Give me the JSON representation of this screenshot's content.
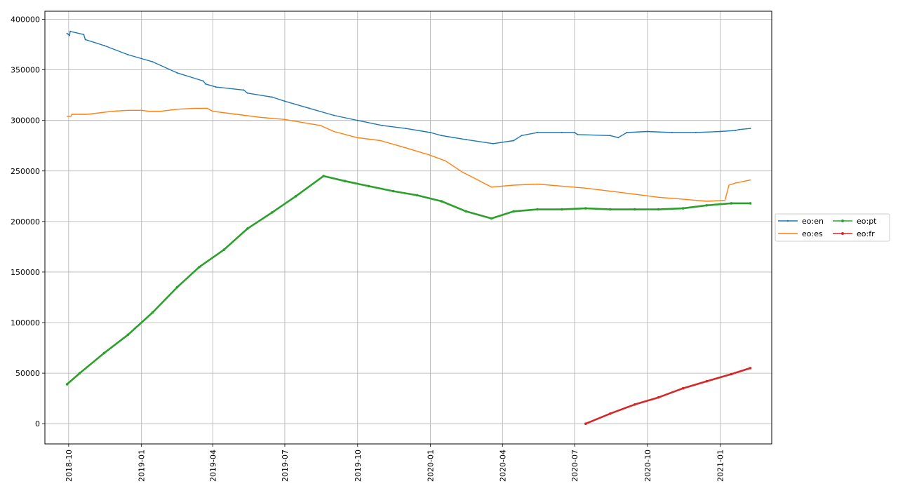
{
  "chart_data": {
    "type": "line",
    "title": "",
    "xlabel": "",
    "ylabel": "",
    "x_type": "date",
    "xlim": [
      "2018-09-01",
      "2021-03-07"
    ],
    "ylim": [
      -20000,
      408000
    ],
    "grid": true,
    "legend_placement": "outside-right",
    "legend_columns": 2,
    "x_ticks": [
      "2018-10",
      "2019-01",
      "2019-04",
      "2019-07",
      "2019-10",
      "2020-01",
      "2020-04",
      "2020-07",
      "2020-10",
      "2021-01"
    ],
    "y_ticks": [
      0,
      50000,
      100000,
      150000,
      200000,
      250000,
      300000,
      350000,
      400000
    ],
    "series": [
      {
        "name": "eo:en",
        "color": "#1f77b4",
        "marker": "small-dot",
        "points": [
          [
            "2018-09-29",
            386000
          ],
          [
            "2018-10-02",
            384000
          ],
          [
            "2018-10-03",
            388000
          ],
          [
            "2018-10-20",
            385000
          ],
          [
            "2018-10-22",
            380000
          ],
          [
            "2018-11-15",
            374000
          ],
          [
            "2018-12-15",
            365000
          ],
          [
            "2019-01-15",
            358000
          ],
          [
            "2019-02-15",
            347000
          ],
          [
            "2019-03-20",
            339000
          ],
          [
            "2019-03-23",
            336000
          ],
          [
            "2019-04-05",
            333000
          ],
          [
            "2019-05-10",
            330000
          ],
          [
            "2019-05-15",
            327000
          ],
          [
            "2019-06-15",
            323000
          ],
          [
            "2019-07-01",
            319000
          ],
          [
            "2019-08-01",
            312000
          ],
          [
            "2019-09-01",
            305000
          ],
          [
            "2019-10-01",
            300000
          ],
          [
            "2019-11-01",
            295000
          ],
          [
            "2019-12-01",
            292000
          ],
          [
            "2020-01-01",
            288000
          ],
          [
            "2020-01-15",
            285000
          ],
          [
            "2020-02-15",
            281000
          ],
          [
            "2020-03-20",
            277000
          ],
          [
            "2020-04-15",
            280000
          ],
          [
            "2020-04-25",
            285000
          ],
          [
            "2020-05-15",
            288000
          ],
          [
            "2020-06-15",
            288000
          ],
          [
            "2020-07-01",
            288000
          ],
          [
            "2020-07-05",
            286000
          ],
          [
            "2020-08-15",
            285000
          ],
          [
            "2020-08-25",
            283000
          ],
          [
            "2020-09-05",
            288000
          ],
          [
            "2020-10-01",
            289000
          ],
          [
            "2020-11-01",
            288000
          ],
          [
            "2020-12-01",
            288000
          ],
          [
            "2021-01-01",
            289000
          ],
          [
            "2021-01-20",
            290000
          ],
          [
            "2021-01-25",
            291000
          ],
          [
            "2021-02-08",
            292000
          ]
        ]
      },
      {
        "name": "eo:es",
        "color": "#ff7f0e",
        "marker": "none",
        "points": [
          [
            "2018-09-29",
            304000
          ],
          [
            "2018-10-04",
            304000
          ],
          [
            "2018-10-05",
            306000
          ],
          [
            "2018-10-25",
            306000
          ],
          [
            "2018-11-25",
            309000
          ],
          [
            "2018-12-15",
            310000
          ],
          [
            "2019-01-01",
            310000
          ],
          [
            "2019-01-10",
            309000
          ],
          [
            "2019-01-25",
            309000
          ],
          [
            "2019-02-15",
            311000
          ],
          [
            "2019-03-10",
            312000
          ],
          [
            "2019-03-25",
            312000
          ],
          [
            "2019-04-01",
            309000
          ],
          [
            "2019-05-01",
            306000
          ],
          [
            "2019-06-01",
            303000
          ],
          [
            "2019-07-01",
            301000
          ],
          [
            "2019-07-15",
            299000
          ],
          [
            "2019-08-15",
            295000
          ],
          [
            "2019-09-01",
            289000
          ],
          [
            "2019-09-30",
            283000
          ],
          [
            "2019-10-30",
            280000
          ],
          [
            "2019-11-30",
            273000
          ],
          [
            "2019-12-30",
            266000
          ],
          [
            "2020-01-20",
            260000
          ],
          [
            "2020-02-10",
            249000
          ],
          [
            "2020-03-01",
            241000
          ],
          [
            "2020-03-18",
            234000
          ],
          [
            "2020-04-15",
            236000
          ],
          [
            "2020-05-15",
            237000
          ],
          [
            "2020-06-15",
            235000
          ],
          [
            "2020-07-15",
            233000
          ],
          [
            "2020-08-15",
            230000
          ],
          [
            "2020-09-15",
            227000
          ],
          [
            "2020-10-15",
            224000
          ],
          [
            "2020-11-15",
            222000
          ],
          [
            "2020-12-15",
            220000
          ],
          [
            "2021-01-07",
            221000
          ],
          [
            "2021-01-12",
            236000
          ],
          [
            "2021-01-20",
            238000
          ],
          [
            "2021-02-08",
            241000
          ]
        ]
      },
      {
        "name": "eo:pt",
        "color": "#2ca02c",
        "marker": "dot",
        "points": [
          [
            "2018-09-29",
            39000
          ],
          [
            "2018-10-15",
            50000
          ],
          [
            "2018-11-15",
            70000
          ],
          [
            "2018-12-15",
            88000
          ],
          [
            "2019-01-15",
            110000
          ],
          [
            "2019-02-15",
            135000
          ],
          [
            "2019-03-15",
            155000
          ],
          [
            "2019-04-15",
            172000
          ],
          [
            "2019-05-15",
            193000
          ],
          [
            "2019-06-15",
            209000
          ],
          [
            "2019-07-15",
            225000
          ],
          [
            "2019-08-19",
            245000
          ],
          [
            "2019-09-15",
            240000
          ],
          [
            "2019-10-15",
            235000
          ],
          [
            "2019-11-15",
            230000
          ],
          [
            "2019-12-15",
            226000
          ],
          [
            "2020-01-15",
            220000
          ],
          [
            "2020-02-15",
            210000
          ],
          [
            "2020-03-18",
            203000
          ],
          [
            "2020-04-15",
            210000
          ],
          [
            "2020-05-15",
            212000
          ],
          [
            "2020-06-15",
            212000
          ],
          [
            "2020-07-15",
            213000
          ],
          [
            "2020-08-15",
            212000
          ],
          [
            "2020-09-15",
            212000
          ],
          [
            "2020-10-15",
            212000
          ],
          [
            "2020-11-15",
            213000
          ],
          [
            "2020-12-15",
            216000
          ],
          [
            "2021-01-15",
            218000
          ],
          [
            "2021-02-08",
            218000
          ]
        ]
      },
      {
        "name": "eo:fr",
        "color": "#d62728",
        "marker": "dot",
        "points": [
          [
            "2020-07-15",
            0
          ],
          [
            "2020-08-15",
            10000
          ],
          [
            "2020-09-15",
            19000
          ],
          [
            "2020-10-15",
            26000
          ],
          [
            "2020-11-15",
            35000
          ],
          [
            "2020-12-15",
            42000
          ],
          [
            "2021-01-15",
            49000
          ],
          [
            "2021-02-08",
            55000
          ]
        ]
      }
    ]
  }
}
